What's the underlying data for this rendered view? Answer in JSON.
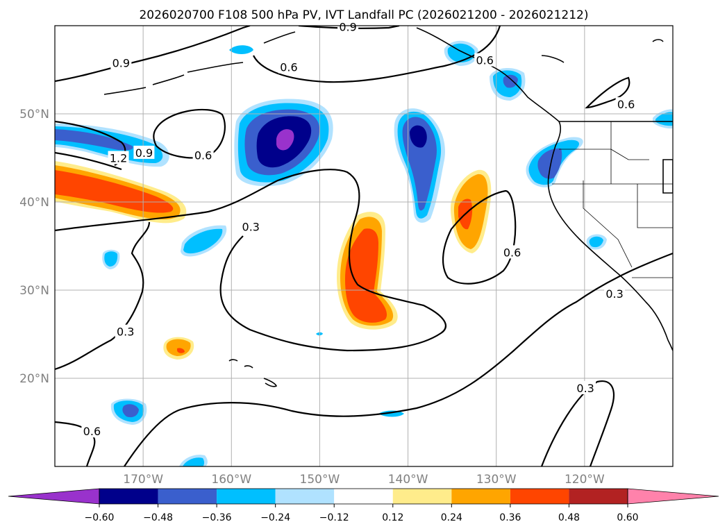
{
  "chart_data": {
    "type": "heatmap",
    "title": "2026020700 F108 500 hPa PV, IVT Landfall PC (2026021200 - 2026021212)",
    "projection": "PlateCarree",
    "lon_range": [
      -180,
      -110
    ],
    "lat_range": [
      10,
      60
    ],
    "lon_ticks": [
      -170,
      -160,
      -150,
      -140,
      -130,
      -120
    ],
    "lon_tick_labels": [
      "170°W",
      "160°W",
      "150°W",
      "140°W",
      "130°W",
      "120°W"
    ],
    "lat_ticks": [
      20,
      30,
      40,
      50
    ],
    "lat_tick_labels": [
      "20°N",
      "30°N",
      "40°N",
      "50°N"
    ],
    "grid": true,
    "colorbar": {
      "orientation": "horizontal",
      "extend": "both",
      "levels": [
        -0.6,
        -0.48,
        -0.36,
        -0.24,
        -0.12,
        0.12,
        0.24,
        0.36,
        0.48,
        0.6
      ],
      "tick_labels": [
        "−0.60",
        "−0.48",
        "−0.36",
        "−0.24",
        "−0.12",
        "0.12",
        "0.24",
        "0.36",
        "0.48",
        "0.60"
      ],
      "colors": [
        "#9932cc",
        "#00008b",
        "#3a5fcd",
        "#00bfff",
        "#b0e2ff",
        "#ffffff",
        "#ffec8b",
        "#ffa500",
        "#ff4500",
        "#b22222",
        "#ff82ab"
      ]
    },
    "filled_anomalies": [
      {
        "name": "band-west-positive",
        "lon": [
          -180,
          -165
        ],
        "lat": [
          38,
          45
        ],
        "peak": 0.4
      },
      {
        "name": "band-west-negative",
        "lon": [
          -180,
          -166
        ],
        "lat": [
          45,
          49
        ],
        "peak": -0.36
      },
      {
        "name": "gulf-alaska-negative",
        "lon": [
          -158,
          -146
        ],
        "lat": [
          42,
          52
        ],
        "peak": -0.6
      },
      {
        "name": "central-positive",
        "lon": [
          -148,
          -141
        ],
        "lat": [
          26,
          38
        ],
        "peak": 0.4
      },
      {
        "name": "ne-pacific-negative",
        "lon": [
          -141,
          -136
        ],
        "lat": [
          38,
          50
        ],
        "peak": -0.48
      },
      {
        "name": "east-positive",
        "lon": [
          -135,
          -131
        ],
        "lat": [
          35,
          43
        ],
        "peak": 0.36
      },
      {
        "name": "oregon-negative",
        "lon": [
          -127,
          -120
        ],
        "lat": [
          42,
          47
        ],
        "peak": -0.36
      },
      {
        "name": "hawaii-se-positive",
        "lon": [
          -167,
          -164
        ],
        "lat": [
          23,
          24.5
        ],
        "peak": 0.36
      },
      {
        "name": "subtropic-negative",
        "lon": [
          -173,
          -170
        ],
        "lat": [
          15.5,
          17.5
        ],
        "peak": -0.36
      }
    ],
    "contour_levels": [
      0.3,
      0.6,
      0.9,
      1.2
    ],
    "contour_labels": [
      {
        "text": "0.9",
        "lon": -172.5,
        "lat": 55.8
      },
      {
        "text": "0.9",
        "lon": -146.8,
        "lat": 59.9
      },
      {
        "text": "0.6",
        "lon": -153.5,
        "lat": 55.3
      },
      {
        "text": "0.6",
        "lon": -131.3,
        "lat": 56.1
      },
      {
        "text": "0.9",
        "lon": -169.9,
        "lat": 45.6
      },
      {
        "text": "1.2",
        "lon": -172.8,
        "lat": 45.0
      },
      {
        "text": "0.6",
        "lon": -163.2,
        "lat": 45.3
      },
      {
        "text": "0.6",
        "lon": -115.3,
        "lat": 51.1
      },
      {
        "text": "0.3",
        "lon": -157.8,
        "lat": 37.2
      },
      {
        "text": "0.6",
        "lon": -128.2,
        "lat": 34.3
      },
      {
        "text": "0.3",
        "lon": -172.0,
        "lat": 25.3
      },
      {
        "text": "0.3",
        "lon": -116.6,
        "lat": 29.6
      },
      {
        "text": "0.3",
        "lon": -119.9,
        "lat": 18.9
      },
      {
        "text": "0.6",
        "lon": -175.8,
        "lat": 14.0
      }
    ]
  }
}
